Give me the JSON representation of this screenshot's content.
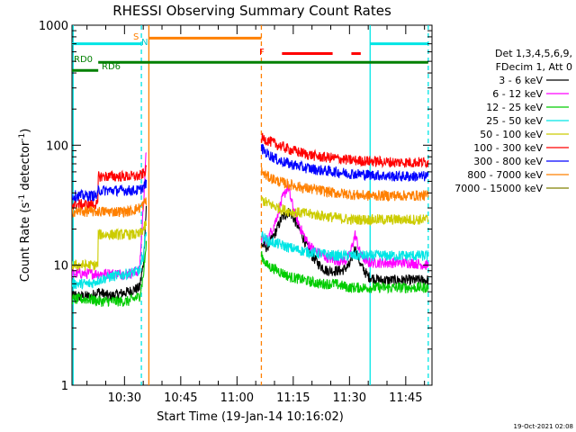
{
  "chart_data": {
    "type": "line",
    "title": "RHESSI Observing Summary Count Rates",
    "xlabel": "Start Time (19-Jan-14 10:16:02)",
    "ylabel_main": "Count Rate (s",
    "ylabel_sup1": "-1",
    "ylabel_mid": " detector",
    "ylabel_sup2": "-1",
    "ylabel_end": ")",
    "footer": "19-Oct-2021 02:08",
    "y_scale": "log",
    "ylim": [
      1,
      1000
    ],
    "xlim_minutes": [
      0,
      96
    ],
    "x_ticks": [
      {
        "label": "10:30",
        "min": 14
      },
      {
        "label": "10:45",
        "min": 29
      },
      {
        "label": "11:00",
        "min": 44
      },
      {
        "label": "11:15",
        "min": 59
      },
      {
        "label": "11:30",
        "min": 74
      },
      {
        "label": "11:45",
        "min": 89
      }
    ],
    "y_ticks": [
      {
        "label": "1",
        "value": 1
      },
      {
        "label": "10",
        "value": 10
      },
      {
        "label": "100",
        "value": 100
      },
      {
        "label": "1000",
        "value": 1000
      }
    ],
    "legend": {
      "header1": "Det 1,3,4,5,6,9,",
      "header2": "FDecim 1, Att 0",
      "entries": [
        {
          "label": "3 - 6 keV",
          "color": "#000000"
        },
        {
          "label": "6 - 12 keV",
          "color": "#ff00ff"
        },
        {
          "label": "12 - 25 keV",
          "color": "#00cc00"
        },
        {
          "label": "25 - 50 keV",
          "color": "#00e5e5"
        },
        {
          "label": "50 - 100 keV",
          "color": "#cccc00"
        },
        {
          "label": "100 - 300 keV",
          "color": "#ff0000"
        },
        {
          "label": "300 - 800 keV",
          "color": "#0000ff"
        },
        {
          "label": "800 - 7000 keV",
          "color": "#ff8000"
        },
        {
          "label": "7000 - 15000 keV",
          "color": "#808000"
        }
      ]
    },
    "flags": [
      {
        "label": "S",
        "color": "#ff8000"
      },
      {
        "label": "N",
        "color": "#00e5e5"
      },
      {
        "label": "F",
        "color": "#ff0000"
      },
      {
        "label": "RD0",
        "color": "#008000"
      },
      {
        "label": "RD6",
        "color": "#008000"
      }
    ],
    "flag_segments": [
      {
        "name": "night",
        "color": "#00e5e5",
        "y_value": 700,
        "segments": [
          [
            0,
            18.5
          ],
          [
            79.5,
            95
          ]
        ]
      },
      {
        "name": "saa",
        "color": "#ff8000",
        "y_value": 780,
        "segments": [
          [
            20.5,
            50.5
          ]
        ]
      },
      {
        "name": "flare",
        "color": "#ff0000",
        "y_value": 580,
        "segments": [
          [
            56,
            69.5
          ],
          [
            74.5,
            77
          ]
        ]
      },
      {
        "name": "decim-rd0",
        "color": "#008000",
        "y_value": 490,
        "segments": [
          [
            7,
            95
          ]
        ]
      },
      {
        "name": "decim-rd6",
        "color": "#008000",
        "y_value": 420,
        "segments": [
          [
            0,
            7
          ]
        ]
      }
    ],
    "vertical_lines": [
      {
        "name": "night-start",
        "min": 0.3,
        "color": "#00e5e5",
        "dashed": false
      },
      {
        "name": "night-end-dash",
        "min": 18.5,
        "color": "#00e5e5",
        "dashed": true
      },
      {
        "name": "saa-start",
        "min": 20.5,
        "color": "#ff8000",
        "dashed": false
      },
      {
        "name": "saa-end",
        "min": 50.5,
        "color": "#ff8000",
        "dashed": true
      },
      {
        "name": "night2-start",
        "min": 79.5,
        "color": "#00e5e5",
        "dashed": false
      },
      {
        "name": "night2-end",
        "min": 95,
        "color": "#00e5e5",
        "dashed": true
      }
    ],
    "series": [
      {
        "name": "3 - 6 keV",
        "color": "#000000",
        "segments": [
          {
            "x": [
              0,
              5,
              7,
              10,
              15,
              18,
              19,
              19.8
            ],
            "y": [
              5.5,
              5.5,
              6,
              5.5,
              6,
              6.5,
              10,
              30
            ]
          },
          {
            "x": [
              50.5,
              52,
              54,
              56,
              58,
              60,
              62,
              64,
              66,
              68,
              70,
              72,
              74,
              75.5,
              77,
              79,
              82,
              86,
              90,
              95
            ],
            "y": [
              15,
              14,
              18,
              25,
              28,
              22,
              16,
              12,
              10,
              9,
              9,
              9,
              10,
              14,
              10,
              8,
              7.5,
              7.5,
              7.5,
              7.5
            ]
          }
        ]
      },
      {
        "name": "6 - 12 keV",
        "color": "#ff00ff",
        "segments": [
          {
            "x": [
              0,
              5,
              7,
              10,
              15,
              18,
              19,
              19.8
            ],
            "y": [
              8.5,
              8.5,
              8.5,
              8.5,
              8.5,
              9,
              30,
              90
            ]
          },
          {
            "x": [
              50.5,
              52,
              54,
              56,
              57.5,
              59,
              61,
              63,
              65,
              67,
              70,
              73,
              74,
              75.5,
              77,
              79,
              82,
              86,
              90,
              95
            ],
            "y": [
              17,
              16,
              22,
              35,
              45,
              30,
              20,
              15,
              13,
              12,
              11,
              11,
              12,
              18,
              12,
              10.5,
              10.5,
              10.5,
              10.5,
              10
            ]
          }
        ]
      },
      {
        "name": "12 - 25 keV",
        "color": "#00cc00",
        "segments": [
          {
            "x": [
              0,
              5,
              7,
              10,
              15,
              18,
              19,
              19.8
            ],
            "y": [
              5.2,
              5.2,
              5,
              5,
              5,
              5.5,
              8,
              15
            ]
          },
          {
            "x": [
              50.5,
              52,
              55,
              58,
              62,
              66,
              70,
              74,
              78,
              82,
              86,
              90,
              95
            ],
            "y": [
              12,
              10,
              9,
              8,
              7.5,
              7,
              7,
              6.5,
              6.5,
              6.5,
              6.5,
              6.5,
              6.5
            ]
          }
        ]
      },
      {
        "name": "25 - 50 keV",
        "color": "#00e5e5",
        "segments": [
          {
            "x": [
              0,
              5,
              7,
              10,
              15,
              18,
              19,
              19.8
            ],
            "y": [
              7,
              7,
              7.5,
              8,
              8.5,
              9,
              12,
              20
            ]
          },
          {
            "x": [
              50.5,
              52,
              55,
              58,
              62,
              66,
              70,
              74,
              78,
              82,
              86,
              90,
              95
            ],
            "y": [
              18,
              16,
              15,
              14,
              13,
              12.5,
              12,
              12,
              12,
              12,
              12,
              12,
              12
            ]
          }
        ]
      },
      {
        "name": "50 - 100 keV",
        "color": "#cccc00",
        "segments": [
          {
            "x": [
              0,
              5,
              6.9,
              7,
              15,
              18,
              19,
              19.8
            ],
            "y": [
              10,
              10,
              10,
              18,
              18,
              18,
              20,
              22
            ]
          },
          {
            "x": [
              50.5,
              52,
              55,
              58,
              62,
              66,
              70,
              74,
              78,
              82,
              86,
              90,
              95
            ],
            "y": [
              35,
              33,
              30,
              28,
              27,
              26,
              25,
              24,
              24,
              24,
              24,
              24,
              24
            ]
          }
        ]
      },
      {
        "name": "100 - 300 keV",
        "color": "#ff0000",
        "segments": [
          {
            "x": [
              0,
              5,
              6.9,
              7,
              15,
              18,
              19,
              19.8
            ],
            "y": [
              32,
              32,
              32,
              55,
              55,
              55,
              58,
              62
            ]
          },
          {
            "x": [
              50.5,
              52,
              55,
              58,
              62,
              66,
              70,
              74,
              78,
              82,
              86,
              90,
              95
            ],
            "y": [
              115,
              110,
              100,
              92,
              85,
              80,
              78,
              75,
              74,
              73,
              72,
              72,
              72
            ]
          }
        ]
      },
      {
        "name": "300 - 800 keV",
        "color": "#0000ff",
        "segments": [
          {
            "x": [
              0,
              5,
              6.9,
              7,
              15,
              18,
              19,
              19.8
            ],
            "y": [
              38,
              38,
              38,
              42,
              42,
              42,
              45,
              48
            ]
          },
          {
            "x": [
              50.5,
              52,
              55,
              58,
              62,
              66,
              70,
              74,
              78,
              82,
              86,
              90,
              95
            ],
            "y": [
              95,
              85,
              75,
              70,
              65,
              62,
              60,
              58,
              57,
              56,
              55,
              55,
              55
            ]
          }
        ]
      },
      {
        "name": "800 - 7000 keV",
        "color": "#ff8000",
        "segments": [
          {
            "x": [
              0,
              5,
              6.9,
              7,
              15,
              18,
              19,
              19.8
            ],
            "y": [
              28,
              28,
              28,
              28,
              28,
              30,
              32,
              35
            ]
          },
          {
            "x": [
              50.5,
              52,
              55,
              58,
              62,
              66,
              70,
              74,
              78,
              82,
              86,
              90,
              95
            ],
            "y": [
              60,
              55,
              50,
              47,
              44,
              42,
              40,
              39,
              38,
              38,
              38,
              38,
              38
            ]
          }
        ]
      },
      {
        "name": "7000 - 15000 keV",
        "color": "#808000",
        "segments": []
      }
    ]
  }
}
